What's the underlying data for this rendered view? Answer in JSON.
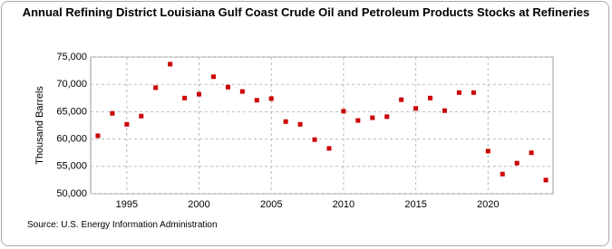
{
  "chart_data": {
    "type": "scatter",
    "title": "Annual Refining District Louisiana Gulf Coast Crude Oil and Petroleum Products Stocks at Refineries",
    "y_label": "Thousand Barrels",
    "source": "Source: U.S. Energy Information Administration",
    "color": "#cc0000",
    "grid": true,
    "x": [
      1993,
      1994,
      1995,
      1996,
      1997,
      1998,
      1999,
      2000,
      2001,
      2002,
      2003,
      2004,
      2005,
      2006,
      2007,
      2008,
      2009,
      2010,
      2011,
      2012,
      2013,
      2014,
      2015,
      2016,
      2017,
      2018,
      2019,
      2020,
      2021,
      2022,
      2023,
      2024
    ],
    "values": [
      60600,
      64700,
      62700,
      64200,
      69400,
      73700,
      67500,
      68200,
      71400,
      69500,
      68700,
      67100,
      67400,
      63200,
      62700,
      59900,
      58300,
      65100,
      63400,
      63900,
      64100,
      67200,
      65600,
      67500,
      65200,
      68500,
      68500,
      57800,
      53600,
      55600,
      57500,
      52500
    ],
    "xlim": [
      1992.5,
      2024.5
    ],
    "xticks": [
      1995,
      2000,
      2005,
      2010,
      2015,
      2020
    ],
    "ylim": [
      50000,
      75000
    ],
    "yticks": [
      {
        "value": 50000,
        "label": "50,000"
      },
      {
        "value": 55000,
        "label": "55,000"
      },
      {
        "value": 60000,
        "label": "60,000"
      },
      {
        "value": 65000,
        "label": "65,000"
      },
      {
        "value": 70000,
        "label": "70,000"
      },
      {
        "value": 75000,
        "label": "75,000"
      }
    ]
  }
}
